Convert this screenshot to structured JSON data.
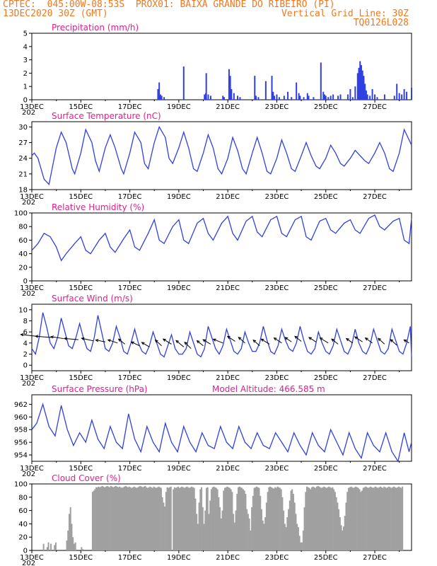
{
  "header": {
    "line1_left": "CPTEC:  045:00W-08:53S  PROX01: BAIXA GRANDE DO RIBEIRO (PI)",
    "line2_left": "13DEC2020 30Z (GMT)",
    "line2_right": "Vertical Grid Line: 30Z",
    "line3_right": "TQ0126L028"
  },
  "colors": {
    "header": "#f07820",
    "title": "#e0208a",
    "line": "#3040e0",
    "bar": "#3040e0",
    "cloud": "#a0a0a0"
  },
  "x_labels": [
    "13DEC",
    "15DEC",
    "17DEC",
    "19DEC",
    "21DEC",
    "23DEC",
    "25DEC",
    "27DEC"
  ],
  "year_stub": "202",
  "model_altitude": "Model Altitude: 466.585 m",
  "chart_data": [
    {
      "type": "bar",
      "title": "Precipitation (mm/h)",
      "ylim": [
        0,
        5
      ],
      "yticks": [
        "0",
        "1",
        "2",
        "3",
        "4",
        "5"
      ],
      "x_unit": "days since 13DEC2020 00Z",
      "x": [
        5.15,
        5.2,
        5.25,
        5.3,
        5.4,
        6.2,
        7.05,
        7.1,
        7.12,
        7.2,
        7.3,
        7.8,
        7.85,
        8.05,
        8.1,
        8.15,
        8.25,
        8.4,
        8.5,
        9.1,
        9.15,
        9.25,
        9.55,
        9.8,
        9.85,
        9.9,
        10.0,
        10.1,
        10.3,
        10.45,
        10.6,
        10.8,
        10.9,
        10.95,
        11.1,
        11.25,
        11.3,
        11.5,
        11.8,
        11.9,
        11.95,
        12.0,
        12.1,
        12.2,
        12.3,
        12.5,
        12.6,
        12.9,
        13.0,
        13.1,
        13.2,
        13.3,
        13.35,
        13.4,
        13.45,
        13.5,
        13.55,
        13.6,
        13.65,
        13.7,
        13.8,
        13.9,
        14.0,
        14.1,
        14.4,
        14.8,
        14.9,
        15.0,
        15.1,
        15.2,
        15.3,
        15.5
      ],
      "values": [
        0.8,
        1.3,
        0.4,
        0.3,
        0.2,
        2.5,
        0.4,
        0.5,
        2.0,
        0.4,
        0.3,
        0.3,
        0.2,
        2.3,
        1.8,
        0.8,
        0.5,
        0.3,
        0.2,
        1.8,
        0.3,
        0.2,
        1.4,
        1.8,
        0.6,
        0.3,
        0.4,
        0.2,
        0.3,
        0.6,
        0.2,
        1.3,
        0.5,
        0.3,
        0.2,
        0.5,
        0.3,
        0.2,
        2.8,
        0.6,
        0.4,
        0.3,
        0.2,
        0.3,
        0.4,
        0.3,
        0.4,
        0.4,
        0.8,
        0.2,
        1.0,
        2.0,
        2.4,
        2.9,
        2.6,
        2.2,
        1.8,
        1.2,
        0.7,
        0.4,
        0.3,
        0.8,
        0.4,
        0.2,
        0.4,
        0.3,
        1.2,
        0.5,
        0.4,
        0.8,
        0.6,
        0.9
      ]
    },
    {
      "type": "line",
      "title": "Surface Temperature (nC)",
      "ylim": [
        18,
        31
      ],
      "yticks": [
        "18",
        "21",
        "24",
        "27",
        "30"
      ],
      "x_unit": "days since 13DEC2020 00Z",
      "x": [
        0,
        0.1,
        0.25,
        0.5,
        0.7,
        1.0,
        1.2,
        1.4,
        1.65,
        1.75,
        2.0,
        2.2,
        2.45,
        2.6,
        2.75,
        3.0,
        3.2,
        3.4,
        3.65,
        3.75,
        4.0,
        4.2,
        4.45,
        4.6,
        4.75,
        5.0,
        5.2,
        5.45,
        5.6,
        5.75,
        6.0,
        6.2,
        6.4,
        6.6,
        6.75,
        7.0,
        7.2,
        7.4,
        7.6,
        7.75,
        8.0,
        8.2,
        8.4,
        8.6,
        8.75,
        9.0,
        9.2,
        9.4,
        9.6,
        9.75,
        10.0,
        10.2,
        10.4,
        10.6,
        10.75,
        11.0,
        11.2,
        11.4,
        11.6,
        11.75,
        12.0,
        12.2,
        12.4,
        12.6,
        12.75,
        13.0,
        13.2,
        13.4,
        13.6,
        13.75,
        14.0,
        14.2,
        14.4,
        14.6,
        14.75,
        15.0,
        15.2,
        15.5
      ],
      "values": [
        24.5,
        25,
        24,
        20,
        19,
        26,
        29,
        27,
        22,
        21,
        25,
        29.5,
        27,
        23.5,
        21.5,
        26,
        28.5,
        26,
        22,
        21,
        25,
        29,
        27,
        23,
        22,
        27,
        30,
        28,
        24,
        23,
        26,
        29,
        26,
        22,
        21.5,
        25,
        28.5,
        26,
        22,
        21,
        24,
        28,
        25.5,
        22,
        21,
        25,
        28,
        25,
        21.5,
        21,
        24,
        27.5,
        25,
        22,
        21.5,
        24.5,
        27,
        24.5,
        22.5,
        22,
        24,
        26.5,
        25,
        23,
        22.5,
        24,
        25.5,
        24.5,
        23.5,
        23,
        25,
        27,
        25,
        22,
        21.5,
        25,
        29.5,
        26.5
      ]
    },
    {
      "type": "line",
      "title": "Relative Humidity (%)",
      "ylim": [
        0,
        100
      ],
      "yticks": [
        "0",
        "20",
        "40",
        "60",
        "80",
        "100"
      ],
      "x_unit": "days since 13DEC2020 00Z",
      "x": [
        0,
        0.25,
        0.5,
        0.75,
        1.0,
        1.2,
        1.4,
        1.75,
        2.0,
        2.2,
        2.4,
        2.75,
        3.0,
        3.2,
        3.4,
        3.75,
        4.0,
        4.2,
        4.4,
        4.75,
        5.0,
        5.2,
        5.4,
        5.75,
        6.0,
        6.2,
        6.4,
        6.75,
        7.0,
        7.2,
        7.4,
        7.75,
        8.0,
        8.2,
        8.4,
        8.75,
        9.0,
        9.2,
        9.4,
        9.75,
        10.0,
        10.2,
        10.4,
        10.75,
        11.0,
        11.2,
        11.4,
        11.75,
        12.0,
        12.2,
        12.4,
        12.75,
        13.0,
        13.2,
        13.4,
        13.75,
        14.0,
        14.2,
        14.4,
        14.75,
        15.0,
        15.2,
        15.4,
        15.5
      ],
      "values": [
        45,
        55,
        70,
        65,
        50,
        30,
        40,
        55,
        65,
        45,
        40,
        60,
        70,
        50,
        42,
        62,
        75,
        50,
        45,
        70,
        90,
        60,
        55,
        80,
        90,
        60,
        55,
        85,
        92,
        70,
        60,
        85,
        95,
        70,
        60,
        88,
        95,
        72,
        65,
        90,
        95,
        70,
        65,
        90,
        95,
        65,
        60,
        88,
        92,
        75,
        70,
        85,
        90,
        75,
        70,
        92,
        97,
        80,
        75,
        88,
        92,
        60,
        55,
        92
      ]
    },
    {
      "type": "line",
      "title": "Surface Wind (m/s)",
      "ylim": [
        -1,
        11
      ],
      "yticks": [
        "0",
        "2",
        "4",
        "6",
        "8",
        "10"
      ],
      "x_unit": "days since 13DEC2020 00Z",
      "x": [
        0,
        0.15,
        0.3,
        0.45,
        0.6,
        0.75,
        0.9,
        1.05,
        1.2,
        1.35,
        1.5,
        1.65,
        1.8,
        1.95,
        2.1,
        2.25,
        2.4,
        2.55,
        2.7,
        2.85,
        3.0,
        3.15,
        3.3,
        3.45,
        3.6,
        3.75,
        3.9,
        4.05,
        4.2,
        4.35,
        4.5,
        4.65,
        4.8,
        4.95,
        5.1,
        5.25,
        5.4,
        5.55,
        5.7,
        5.85,
        6.0,
        6.15,
        6.3,
        6.45,
        6.6,
        6.75,
        6.9,
        7.05,
        7.2,
        7.35,
        7.5,
        7.65,
        7.8,
        7.95,
        8.1,
        8.25,
        8.4,
        8.55,
        8.7,
        8.85,
        9.0,
        9.15,
        9.3,
        9.45,
        9.6,
        9.75,
        9.9,
        10.05,
        10.2,
        10.35,
        10.5,
        10.65,
        10.8,
        10.95,
        11.1,
        11.25,
        11.4,
        11.55,
        11.7,
        11.85,
        12.0,
        12.15,
        12.3,
        12.45,
        12.6,
        12.75,
        12.9,
        13.05,
        13.2,
        13.35,
        13.5,
        13.65,
        13.8,
        13.95,
        14.1,
        14.25,
        14.4,
        14.55,
        14.7,
        14.85,
        15.0,
        15.15,
        15.3,
        15.45,
        15.5
      ],
      "values": [
        3,
        2,
        5,
        9.5,
        7,
        4,
        3,
        5,
        8.5,
        6,
        3.5,
        3,
        5,
        7.5,
        5,
        3,
        2.5,
        5,
        9,
        6,
        3,
        2.5,
        4,
        7,
        5,
        2.5,
        2,
        4,
        6.5,
        4,
        2.5,
        2,
        3.5,
        6,
        4,
        2,
        1.5,
        3.5,
        5.5,
        3,
        2,
        2,
        3,
        6,
        4,
        2,
        1.5,
        3,
        7,
        5,
        3,
        2,
        3.5,
        6.5,
        4.5,
        2.5,
        2,
        3,
        6,
        4,
        2.5,
        2.5,
        4,
        7,
        4.5,
        2.5,
        2,
        3.5,
        6.5,
        4.5,
        3,
        2.5,
        4,
        7,
        4.5,
        2.5,
        2,
        3,
        6,
        4,
        2.5,
        2,
        3.5,
        6.5,
        4.5,
        2.5,
        2,
        3.5,
        6.5,
        4,
        2.5,
        2,
        3.5,
        6.5,
        4.5,
        2.5,
        2,
        3,
        6.5,
        4.5,
        2.5,
        2,
        4,
        7,
        1.5
      ],
      "arrows_x": [
        0.2,
        0.8,
        1.3,
        1.9,
        2.5,
        3.0,
        3.5,
        3.8,
        4.4,
        4.8,
        5.3,
        5.7,
        6.2,
        6.5,
        7.0,
        7.3,
        7.8,
        8.3,
        8.7,
        9.3,
        9.7,
        10.2,
        10.6,
        11.0,
        11.6,
        12.1,
        12.5,
        13.1,
        13.5,
        13.9,
        14.4,
        14.9,
        15.4
      ],
      "arrows_y": [
        5.2,
        5.0,
        4.8,
        4.6,
        4.4,
        4.2,
        4.0,
        3.8,
        3.5,
        3.3,
        3.5,
        3.8,
        3.3,
        3.0,
        3.5,
        3.8,
        4.0,
        4.3,
        4.0,
        3.5,
        3.8,
        4.0,
        4.2,
        4.3,
        4.2,
        4.0,
        3.8,
        4.0,
        4.2,
        4.0,
        3.8,
        3.6,
        4.0
      ],
      "arrows_u": [
        -2.5,
        -2.5,
        -2.0,
        -2.2,
        -1.8,
        -1.5,
        -1.5,
        -1.0,
        -1.3,
        -1.2,
        -1.0,
        -1.3,
        -1.2,
        -1.0,
        -1.0,
        -1.2,
        -1.5,
        -1.2,
        -1.0,
        -1.0,
        -1.3,
        -1.2,
        -1.0,
        -1.0,
        -1.1,
        -1.3,
        -1.0,
        -1.0,
        -1.2,
        -1.1,
        -1.0,
        -1.0,
        -0.8
      ],
      "arrows_v": [
        0.3,
        0.2,
        0.3,
        0.2,
        0.4,
        0.3,
        0.5,
        0.8,
        0.6,
        0.7,
        0.9,
        0.8,
        1.0,
        1.0,
        0.8,
        0.7,
        0.6,
        0.8,
        0.9,
        0.9,
        0.8,
        0.8,
        0.7,
        0.8,
        0.7,
        0.8,
        0.8,
        0.7,
        0.8,
        0.8,
        0.9,
        0.9,
        0.5
      ]
    },
    {
      "type": "line",
      "title": "Surface Pressure (hPa)",
      "ylim": [
        953,
        963.5
      ],
      "yticks": [
        "954",
        "956",
        "958",
        "960",
        "962"
      ],
      "x_unit": "days since 13DEC2020 00Z",
      "x": [
        0,
        0.2,
        0.45,
        0.7,
        0.95,
        1.2,
        1.45,
        1.7,
        1.95,
        2.2,
        2.45,
        2.7,
        2.95,
        3.2,
        3.45,
        3.7,
        3.95,
        4.2,
        4.45,
        4.7,
        4.95,
        5.2,
        5.45,
        5.7,
        5.95,
        6.2,
        6.45,
        6.7,
        6.95,
        7.2,
        7.45,
        7.7,
        7.95,
        8.2,
        8.45,
        8.7,
        8.95,
        9.2,
        9.45,
        9.7,
        9.95,
        10.2,
        10.45,
        10.7,
        10.95,
        11.2,
        11.45,
        11.7,
        11.95,
        12.2,
        12.45,
        12.7,
        12.95,
        13.2,
        13.45,
        13.7,
        13.95,
        14.2,
        14.45,
        14.7,
        14.95,
        15.2,
        15.4,
        15.5
      ],
      "values": [
        958,
        959,
        962,
        958.5,
        957,
        961.8,
        958,
        955.5,
        957.5,
        956,
        959.5,
        956.5,
        955,
        958.5,
        956,
        955,
        960.5,
        956.5,
        954.5,
        958.5,
        956,
        954.5,
        959,
        956,
        954.5,
        958.5,
        956,
        954.5,
        957.5,
        955.5,
        955,
        958.5,
        956,
        955,
        958.5,
        956,
        955,
        957.5,
        955.5,
        955,
        957.5,
        956,
        954.5,
        957.5,
        955.5,
        954,
        957.5,
        955.5,
        954.5,
        958,
        956,
        954,
        957.5,
        955,
        953.5,
        957.5,
        955.5,
        954.5,
        957.5,
        954.5,
        953,
        957.5,
        954.5,
        956
      ]
    },
    {
      "type": "bar",
      "title": "Cloud Cover (%)",
      "ylim": [
        0,
        100
      ],
      "yticks": [
        "0",
        "20",
        "40",
        "60",
        "80",
        "100"
      ],
      "x_unit": "days since 13DEC2020 00Z",
      "x_start": 0.1,
      "x_step": 0.05,
      "values": [
        0,
        0,
        0,
        0,
        0,
        0,
        0,
        10,
        0,
        0,
        5,
        12,
        0,
        10,
        0,
        0,
        8,
        12,
        0,
        0,
        0,
        0,
        0,
        0,
        0,
        0,
        15,
        30,
        55,
        65,
        40,
        20,
        10,
        12,
        0,
        0,
        0,
        0,
        5,
        2,
        0,
        0,
        0,
        0,
        0,
        0,
        0,
        88,
        90,
        92,
        95,
        95,
        96,
        95,
        96,
        97,
        96,
        95,
        96,
        97,
        96,
        95,
        97,
        96,
        95,
        96,
        97,
        96,
        95,
        96,
        95,
        94,
        95,
        96,
        97,
        96,
        95,
        96,
        95,
        94,
        95,
        96,
        95,
        94,
        95,
        96,
        97,
        96,
        95,
        96,
        97,
        95,
        94,
        95,
        96,
        95,
        94,
        96,
        95,
        94,
        95,
        96,
        95,
        94,
        80,
        72,
        66,
        88,
        95,
        94,
        95,
        96,
        0,
        92,
        95,
        94,
        95,
        96,
        94,
        95,
        96,
        95,
        94,
        95,
        96,
        95,
        94,
        95,
        96,
        95,
        94,
        78,
        55,
        40,
        72,
        92,
        95,
        65,
        40,
        60,
        94,
        95,
        55,
        75,
        92,
        95,
        96,
        95,
        94,
        92,
        80,
        65,
        48,
        60,
        90,
        94,
        95,
        96,
        95,
        94,
        92,
        88,
        55,
        42,
        60,
        85,
        95,
        96,
        95,
        94,
        92,
        90,
        85,
        62,
        55,
        48,
        30,
        65,
        82,
        94,
        95,
        96,
        95,
        94,
        82,
        62,
        45,
        40,
        50,
        72,
        88,
        95,
        96,
        95,
        94,
        93,
        95,
        94,
        96,
        95,
        94,
        92,
        80,
        60,
        40,
        35,
        50,
        62,
        75,
        90,
        92,
        85,
        72,
        55,
        40,
        35,
        22,
        12,
        12,
        30,
        65,
        88,
        96,
        95,
        94,
        92,
        95,
        96,
        95,
        94,
        96,
        97,
        96,
        95,
        94,
        95,
        96,
        95,
        94,
        95,
        96,
        95,
        94,
        95,
        92,
        88,
        80,
        72,
        62,
        50,
        38,
        30,
        36,
        52,
        72,
        88,
        94,
        95,
        96,
        95,
        94,
        95,
        96,
        95,
        94,
        92,
        88,
        90,
        94,
        95,
        96,
        95,
        94,
        95,
        96,
        95,
        94,
        95,
        96,
        95,
        94,
        95,
        96,
        95,
        94,
        96,
        95,
        94,
        95,
        96,
        95,
        94,
        95,
        96,
        95,
        94,
        95,
        96,
        95,
        94,
        96
      ]
    }
  ]
}
